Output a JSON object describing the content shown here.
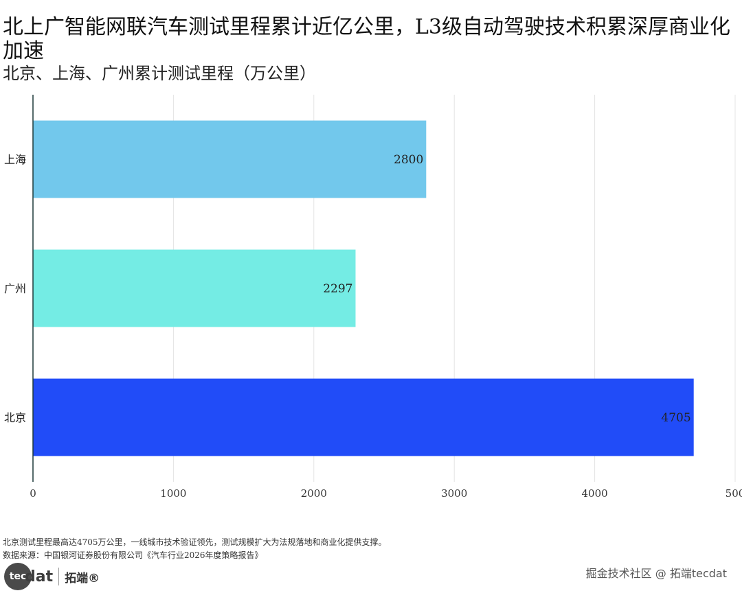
{
  "header": {
    "title": "北上广智能网联汽车测试里程累计近亿公里，L3级自动驾驶技术积累深厚商业化加速",
    "subtitle": "北京、上海、广州累计测试里程（万公里）"
  },
  "chart_data": {
    "type": "bar",
    "orientation": "horizontal",
    "categories": [
      "上海",
      "广州",
      "北京"
    ],
    "values": [
      2800,
      2297,
      4705
    ],
    "colors": [
      "#72c8ec",
      "#74ece4",
      "#214cf8"
    ],
    "xlim": [
      0,
      5000
    ],
    "xticks": [
      "0",
      "1000",
      "2000",
      "3000",
      "4000",
      "500"
    ],
    "grid": true,
    "legend": "none"
  },
  "footer": {
    "note": "北京测试里程最高达4705万公里，一线城市技术验证领先，测试规模扩大为法规落地和商业化提供支撑。",
    "source": "数据来源：中国银河证券股份有限公司《汽车行业2026年度策略报告》",
    "brand_logo": "tec",
    "brand_word": "dat",
    "brand_cn": "拓端®",
    "watermark": "掘金技术社区 @ 拓端tecdat"
  }
}
